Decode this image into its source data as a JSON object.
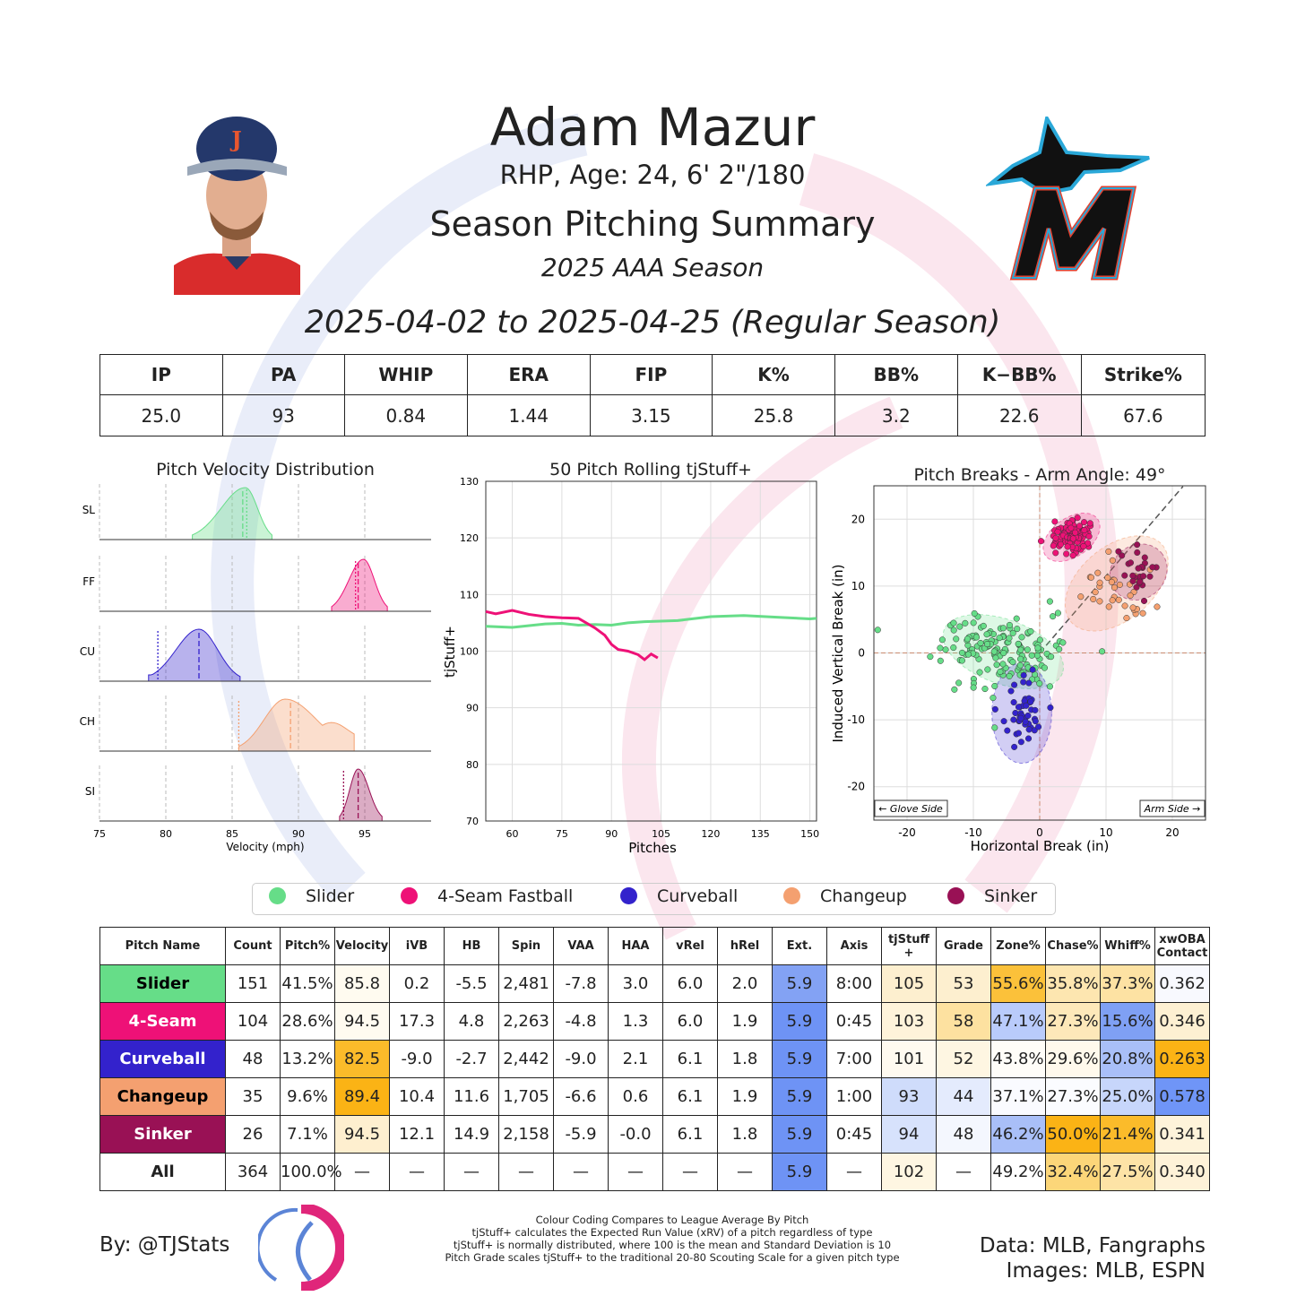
{
  "header": {
    "player_name": "Adam Mazur",
    "player_info": "RHP, Age: 24, 6' 2\"/180",
    "report_title": "Season Pitching Summary",
    "season": "2025 AAA Season",
    "date_range": "2025-04-02 to 2025-04-25 (Regular Season)"
  },
  "summary_stats": {
    "headers": [
      "IP",
      "PA",
      "WHIP",
      "ERA",
      "FIP",
      "K%",
      "BB%",
      "K−BB%",
      "Strike%"
    ],
    "values": [
      "25.0",
      "93",
      "0.84",
      "1.44",
      "3.15",
      "25.8",
      "3.2",
      "22.6",
      "67.6"
    ]
  },
  "colors": {
    "Slider": "#66dd88",
    "4-Seam Fastball": "#ee1177",
    "Curveball": "#3322cc",
    "Changeup": "#f4a070",
    "Sinker": "#991155",
    "low": "#6f95f7",
    "mid": "#ffffff",
    "high": "#fbb315"
  },
  "chart_data": [
    {
      "type": "area",
      "title": "Pitch Velocity Distribution",
      "xlabel": "Velocity (mph)",
      "xlim": [
        75,
        100
      ],
      "xticks": [
        75,
        80,
        85,
        90,
        95
      ],
      "series": [
        {
          "name": "SL",
          "pitch": "Slider",
          "min": 82,
          "max": 88,
          "peak": 86,
          "mean": 85.8,
          "median": 86.0,
          "league_mean": 86.1
        },
        {
          "name": "FF",
          "pitch": "4-Seam Fastball",
          "min": 92.5,
          "max": 96.7,
          "peak": 94.9,
          "mean": 94.5,
          "median": 94.6,
          "league_mean": 94.3
        },
        {
          "name": "CU",
          "pitch": "Curveball",
          "min": 78.7,
          "max": 85.6,
          "peak": 82.5,
          "mean": 82.5,
          "median": 82.5,
          "league_mean": 79.4
        },
        {
          "name": "CH",
          "pitch": "Changeup",
          "min": 85.5,
          "max": 94.2,
          "peak": 89,
          "mean": 89.4,
          "median": 89.4,
          "league_mean": 85.5
        },
        {
          "name": "SI",
          "pitch": "Sinker",
          "min": 93.1,
          "max": 96.3,
          "peak": 94.5,
          "mean": 94.5,
          "median": 94.5,
          "league_mean": 93.4
        }
      ]
    },
    {
      "type": "line",
      "title": "50 Pitch Rolling tjStuff+",
      "xlabel": "Pitches",
      "ylabel": "tjStuff+",
      "xlim": [
        52,
        152
      ],
      "ylim": [
        70,
        130
      ],
      "xticks": [
        60,
        75,
        90,
        105,
        120,
        135,
        150
      ],
      "yticks": [
        70,
        80,
        90,
        100,
        110,
        120,
        130
      ],
      "series": [
        {
          "pitch": "Slider",
          "x": [
            52,
            60,
            70,
            75,
            80,
            85,
            90,
            95,
            100,
            110,
            120,
            130,
            140,
            150,
            152
          ],
          "y": [
            104.4,
            104.2,
            104.8,
            104.9,
            104.6,
            104.7,
            104.6,
            105.0,
            105.2,
            105.4,
            106.1,
            106.3,
            106.0,
            105.7,
            105.8
          ]
        },
        {
          "pitch": "4-Seam Fastball",
          "x": [
            52,
            55,
            60,
            65,
            70,
            75,
            80,
            85,
            88,
            90,
            92,
            95,
            98,
            100,
            102,
            104
          ],
          "y": [
            107.0,
            106.6,
            107.2,
            106.5,
            106.1,
            105.9,
            105.8,
            104.1,
            102.8,
            101.2,
            100.3,
            100.0,
            99.4,
            98.5,
            99.5,
            98.8
          ]
        }
      ]
    },
    {
      "type": "scatter",
      "title": "Pitch Breaks - Arm Angle: 49°",
      "xlabel": "Horizontal Break (in)",
      "ylabel": "Induced Vertical Break (in)",
      "xlim": [
        -25,
        25
      ],
      "ylim": [
        -25,
        25
      ],
      "xticks": [
        -20,
        -10,
        0,
        10,
        20
      ],
      "yticks": [
        -20,
        -10,
        0,
        10,
        20
      ],
      "annotations": [
        "← Glove Side",
        "Arm Side →"
      ],
      "clusters": [
        {
          "pitch": "Slider",
          "center": [
            -5.5,
            0.2
          ],
          "spread": [
            4.5,
            2.6
          ],
          "count": 151,
          "ellipse": {
            "rx": 9.5,
            "ry": 4.8,
            "angle": 20
          }
        },
        {
          "pitch": "4-Seam Fastball",
          "center": [
            4.8,
            17.3
          ],
          "spread": [
            1.6,
            1.2
          ],
          "count": 104,
          "ellipse": {
            "rx": 4.8,
            "ry": 2.9,
            "angle": -35
          }
        },
        {
          "pitch": "Curveball",
          "center": [
            -2.7,
            -9.0
          ],
          "spread": [
            1.5,
            2.6
          ],
          "count": 48,
          "ellipse": {
            "rx": 4.5,
            "ry": 7.5,
            "angle": 0
          }
        },
        {
          "pitch": "Changeup",
          "center": [
            11.6,
            10.4
          ],
          "spread": [
            2.8,
            2.5
          ],
          "count": 35,
          "ellipse": {
            "rx": 9.0,
            "ry": 5.5,
            "angle": -40
          }
        },
        {
          "pitch": "Sinker",
          "center": [
            14.9,
            12.1
          ],
          "spread": [
            2.0,
            1.8
          ],
          "count": 26,
          "ellipse": {
            "rx": 4.5,
            "ry": 4.0,
            "angle": -40
          }
        }
      ]
    },
    {
      "type": "table",
      "columns": [
        "Pitch Name",
        "Count",
        "Pitch%",
        "Velocity",
        "iVB",
        "HB",
        "Spin",
        "VAA",
        "HAA",
        "vRel",
        "hRel",
        "Ext.",
        "Axis",
        "tjStuff +",
        "Grade",
        "Zone%",
        "Chase%",
        "Whiff%",
        "xwOBA Contact"
      ],
      "rows": [
        {
          "pitch": "Slider",
          "label": "Slider",
          "cells": [
            "151",
            "41.5%",
            "85.8",
            "0.2",
            "-5.5",
            "2,481",
            "-7.8",
            "3.0",
            "6.0",
            "2.0",
            "5.9",
            "8:00",
            "105",
            "53",
            "55.6%",
            "35.8%",
            "37.3%",
            "0.362"
          ],
          "shade": {
            "Velocity": "#fffbf0",
            "Ext.": "#83a2f4",
            "tjStuff +": "#fdefcf",
            "Grade": "#fdefcf",
            "Zone%": "#fbc13a",
            "Chase%": "#fde6b0",
            "Whiff%": "#fde2a3",
            "xwOBA Contact": "#f8f9fe"
          }
        },
        {
          "pitch": "4-Seam Fastball",
          "label": "4-Seam",
          "cells": [
            "104",
            "28.6%",
            "94.5",
            "17.3",
            "4.8",
            "2,263",
            "-4.8",
            "1.3",
            "6.0",
            "1.9",
            "5.9",
            "0:45",
            "103",
            "58",
            "47.1%",
            "27.3%",
            "15.6%",
            "0.346"
          ],
          "shade": {
            "Velocity": "#fffbf0",
            "Ext.": "#6e93f5",
            "tjStuff +": "#fef3da",
            "Grade": "#fde1a0",
            "Zone%": "#b9cbfb",
            "Chase%": "#fde8b9",
            "Whiff%": "#7fa0f4",
            "xwOBA Contact": "#fdf0d2"
          }
        },
        {
          "pitch": "Curveball",
          "label": "Curveball",
          "cells": [
            "48",
            "13.2%",
            "82.5",
            "-9.0",
            "-2.7",
            "2,442",
            "-9.0",
            "2.1",
            "6.1",
            "1.8",
            "5.9",
            "7:00",
            "101",
            "52",
            "43.8%",
            "29.6%",
            "20.8%",
            "0.263"
          ],
          "shade": {
            "Velocity": "#fbbb2a",
            "Ext.": "#6e93f5",
            "tjStuff +": "#fffaf0",
            "Grade": "#fef6e2",
            "Zone%": "#fffdf8",
            "Chase%": "#fff9ec",
            "Whiff%": "#a9bff8",
            "xwOBA Contact": "#fbb315"
          }
        },
        {
          "pitch": "Changeup",
          "label": "Changeup",
          "cells": [
            "35",
            "9.6%",
            "89.4",
            "10.4",
            "11.6",
            "1,705",
            "-6.6",
            "0.6",
            "6.1",
            "1.9",
            "5.9",
            "1:00",
            "93",
            "44",
            "37.1%",
            "27.3%",
            "25.0%",
            "0.578"
          ],
          "shade": {
            "Velocity": "#fbb315",
            "Ext.": "#6e93f5",
            "tjStuff +": "#cfdcfb",
            "Grade": "#e4ebfd",
            "Zone%": "#fafbff",
            "Chase%": "#fbfcff",
            "Whiff%": "#c7d6fb",
            "xwOBA Contact": "#6f95f7"
          }
        },
        {
          "pitch": "Sinker",
          "label": "Sinker",
          "cells": [
            "26",
            "7.1%",
            "94.5",
            "12.1",
            "14.9",
            "2,158",
            "-5.9",
            "-0.0",
            "6.1",
            "1.8",
            "5.9",
            "0:45",
            "94",
            "48",
            "46.2%",
            "50.0%",
            "21.4%",
            "0.341"
          ],
          "shade": {
            "Velocity": "#feefcf",
            "Ext.": "#6e93f5",
            "tjStuff +": "#d7e2fc",
            "Grade": "#f4f7fe",
            "Zone%": "#a9bff8",
            "Chase%": "#fbb315",
            "Whiff%": "#fbbb2a",
            "xwOBA Contact": "#fef3da"
          }
        },
        {
          "pitch": "All",
          "label": "All",
          "cells": [
            "364",
            "100.0%",
            "—",
            "—",
            "—",
            "—",
            "—",
            "—",
            "—",
            "—",
            "5.9",
            "—",
            "102",
            "—",
            "49.2%",
            "32.4%",
            "27.5%",
            "0.340"
          ],
          "shade": {
            "Ext.": "#6e93f5",
            "tjStuff +": "#fef6e2",
            "Chase%": "#fcd679",
            "Whiff%": "#fde3a6",
            "xwOBA Contact": "#fef2d8"
          }
        }
      ]
    }
  ],
  "legend": [
    "Slider",
    "4-Seam Fastball",
    "Curveball",
    "Changeup",
    "Sinker"
  ],
  "footer": {
    "byline": "By: @TJStats",
    "notes": [
      "Colour Coding Compares to League Average By Pitch",
      "tjStuff+ calculates the Expected Run Value (xRV) of a pitch regardless of type",
      "tjStuff+ is normally distributed, where 100 is the mean and Standard Deviation is 10",
      "Pitch Grade scales tjStuff+ to the traditional 20-80 Scouting Scale for a given pitch type"
    ],
    "data_credit": "Data: MLB, Fangraphs",
    "image_credit": "Images: MLB, ESPN"
  }
}
